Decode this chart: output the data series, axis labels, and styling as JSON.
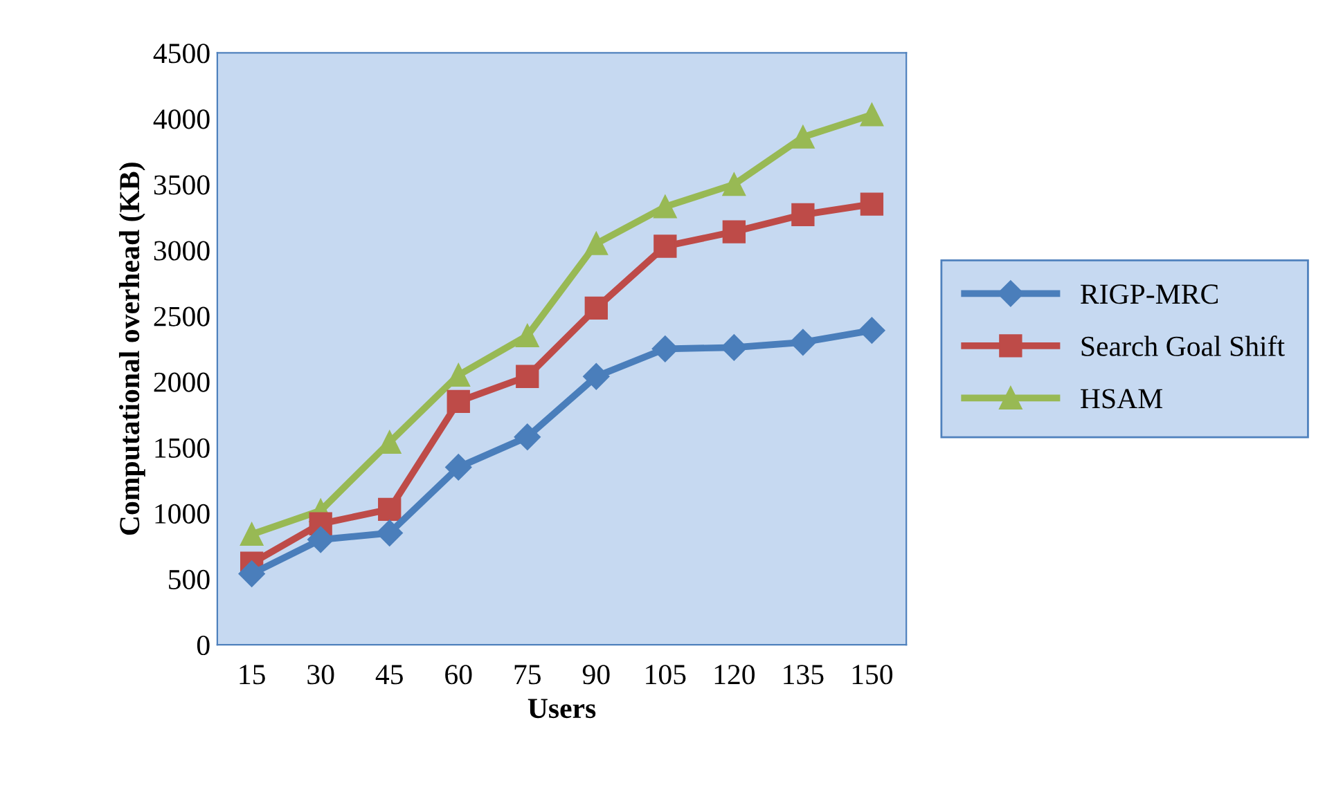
{
  "chart_data": {
    "type": "line",
    "xlabel": "Users",
    "ylabel": "Computational overhead (KB)",
    "categories": [
      "15",
      "30",
      "45",
      "60",
      "75",
      "90",
      "105",
      "120",
      "135",
      "150"
    ],
    "ylim": [
      0,
      4500
    ],
    "yticks": [
      0,
      500,
      1000,
      1500,
      2000,
      2500,
      3000,
      3500,
      4000,
      4500
    ],
    "grid": false,
    "legend": "right",
    "line_style": "solid",
    "series": [
      {
        "name": "RIGP-MRC",
        "color": "#4a7ebb",
        "marker": "diamond",
        "values": [
          540,
          800,
          850,
          1350,
          1580,
          2040,
          2250,
          2260,
          2300,
          2390
        ]
      },
      {
        "name": "Search Goal Shift",
        "color": "#be4b48",
        "marker": "square",
        "values": [
          620,
          920,
          1030,
          1850,
          2040,
          2560,
          3030,
          3140,
          3270,
          3350
        ]
      },
      {
        "name": "HSAM",
        "color": "#98b954",
        "marker": "triangle",
        "values": [
          840,
          1020,
          1540,
          2050,
          2350,
          3050,
          3330,
          3500,
          3860,
          4030
        ]
      }
    ]
  }
}
